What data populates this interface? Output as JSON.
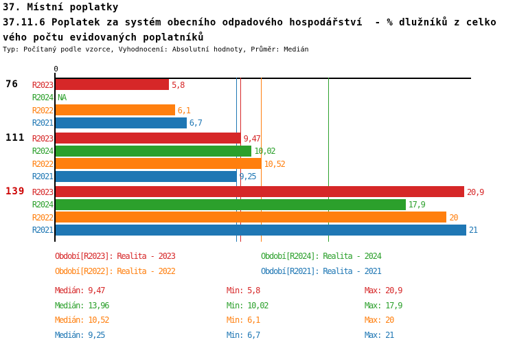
{
  "header": {
    "title_line1": "37. Místní poplatky",
    "title_line2": "37.11.6 Poplatek za systém obecního odpadového hospodářství  - % dlužníků z celko",
    "title_line3": "vého počtu evidovaných poplatníků",
    "meta": "Typ: Počítaný podle vzorce, Vyhodnocení: Absolutní hodnoty, Průměr: Medián"
  },
  "chart_data": {
    "type": "bar",
    "orientation": "horizontal",
    "title": "37. Místní poplatky",
    "subtitle": "37.11.6 Poplatek za systém obecního odpadového hospodářství - % dlužníků z celkového počtu evidovaných poplatníků",
    "xlim": [
      0,
      21.25
    ],
    "x_tick_labels": [
      "0"
    ],
    "grid": false,
    "legend_position": "bottom",
    "categories": [
      "76",
      "111",
      "139"
    ],
    "category_label_colors": [
      "#000000",
      "#000000",
      "#cc0000"
    ],
    "series": [
      {
        "name": "R2023",
        "color": "#d62728",
        "values": [
          5.8,
          9.47,
          20.9
        ],
        "value_labels": [
          "5,8",
          "9,47",
          "20,9"
        ],
        "median": 9.47,
        "min": 5.8,
        "max": 20.9,
        "legend_label": "Období[R2023]: Realita - 2023",
        "median_label": "Medián: 9,47",
        "min_label": "Min: 5,8",
        "max_label": "Max: 20,9"
      },
      {
        "name": "R2024",
        "color": "#2ca02c",
        "values": [
          null,
          10.02,
          17.9
        ],
        "value_labels": [
          "NA",
          "10,02",
          "17,9"
        ],
        "median": 13.96,
        "min": 10.02,
        "max": 17.9,
        "legend_label": "Období[R2024]: Realita - 2024",
        "median_label": "Medián: 13,96",
        "min_label": "Min: 10,02",
        "max_label": "Max: 17,9"
      },
      {
        "name": "R2022",
        "color": "#ff7f0e",
        "values": [
          6.1,
          10.52,
          20
        ],
        "value_labels": [
          "6,1",
          "10,52",
          "20"
        ],
        "median": 10.52,
        "min": 6.1,
        "max": 20,
        "legend_label": "Období[R2022]: Realita - 2022",
        "median_label": "Medián: 10,52",
        "min_label": "Min: 6,1",
        "max_label": "Max: 20"
      },
      {
        "name": "R2021",
        "color": "#1f77b4",
        "values": [
          6.7,
          9.25,
          21
        ],
        "value_labels": [
          "6,7",
          "9,25",
          "21"
        ],
        "median": 9.25,
        "min": 6.7,
        "max": 21,
        "legend_label": "Období[R2021]: Realita - 2021",
        "median_label": "Medián: 9,25",
        "min_label": "Min: 6,7",
        "max_label": "Max: 21"
      }
    ]
  }
}
